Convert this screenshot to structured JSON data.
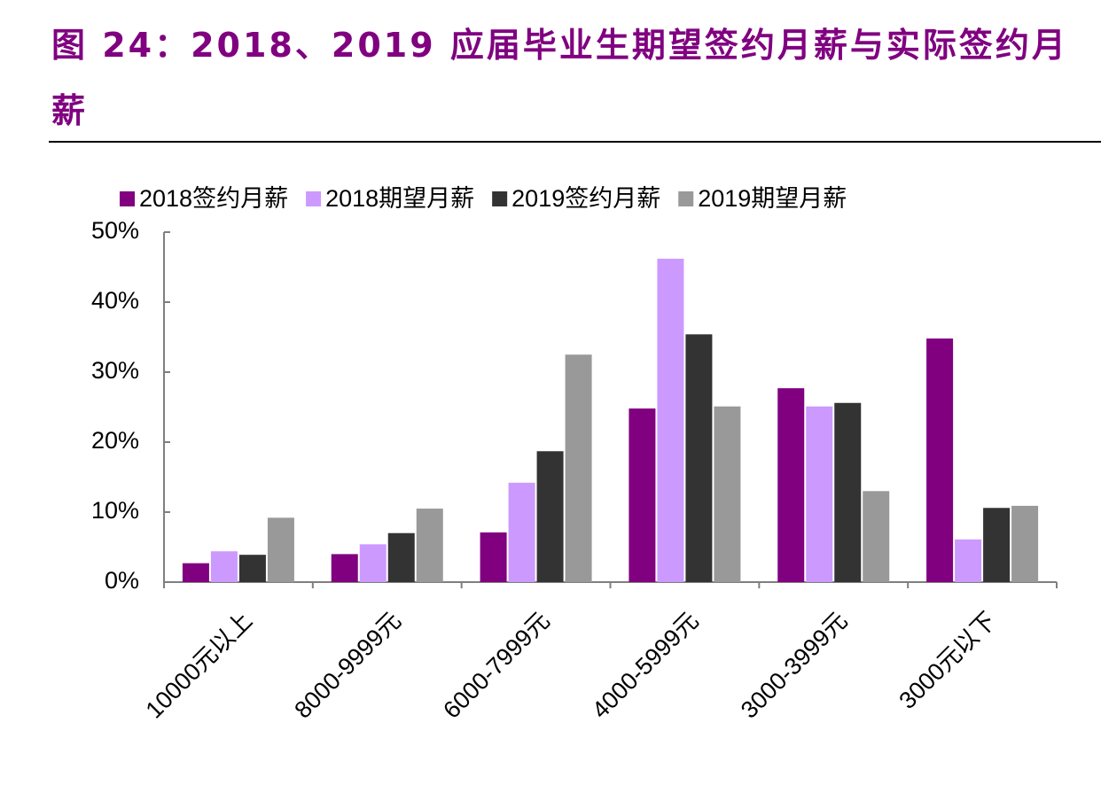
{
  "chart_data": {
    "type": "bar",
    "title": "图 24：2018、2019 应届毕业生期望签约月薪与实际签约月薪",
    "categories": [
      "10000元以上",
      "8000-9999元",
      "6000-7999元",
      "4000-5999元",
      "3000-3999元",
      "3000元以下"
    ],
    "series": [
      {
        "name": "2018签约月薪",
        "color": "#800080",
        "values": [
          2.7,
          4.0,
          7.1,
          24.8,
          27.7,
          34.8
        ]
      },
      {
        "name": "2018期望月薪",
        "color": "#cc99ff",
        "values": [
          4.4,
          5.4,
          14.2,
          46.2,
          25.1,
          6.1
        ]
      },
      {
        "name": "2019签约月薪",
        "color": "#333333",
        "values": [
          3.9,
          7.0,
          18.7,
          35.4,
          25.6,
          10.6
        ]
      },
      {
        "name": "2019期望月薪",
        "color": "#999999",
        "values": [
          9.2,
          10.5,
          32.5,
          25.1,
          13.0,
          10.9
        ]
      }
    ],
    "ylim": [
      0,
      50
    ],
    "yticks": [
      {
        "value": 0,
        "label": "0%"
      },
      {
        "value": 10,
        "label": "10%"
      },
      {
        "value": 20,
        "label": "20%"
      },
      {
        "value": 30,
        "label": "30%"
      },
      {
        "value": 40,
        "label": "40%"
      },
      {
        "value": 50,
        "label": "50%"
      }
    ],
    "grid": false,
    "legend": "top"
  }
}
